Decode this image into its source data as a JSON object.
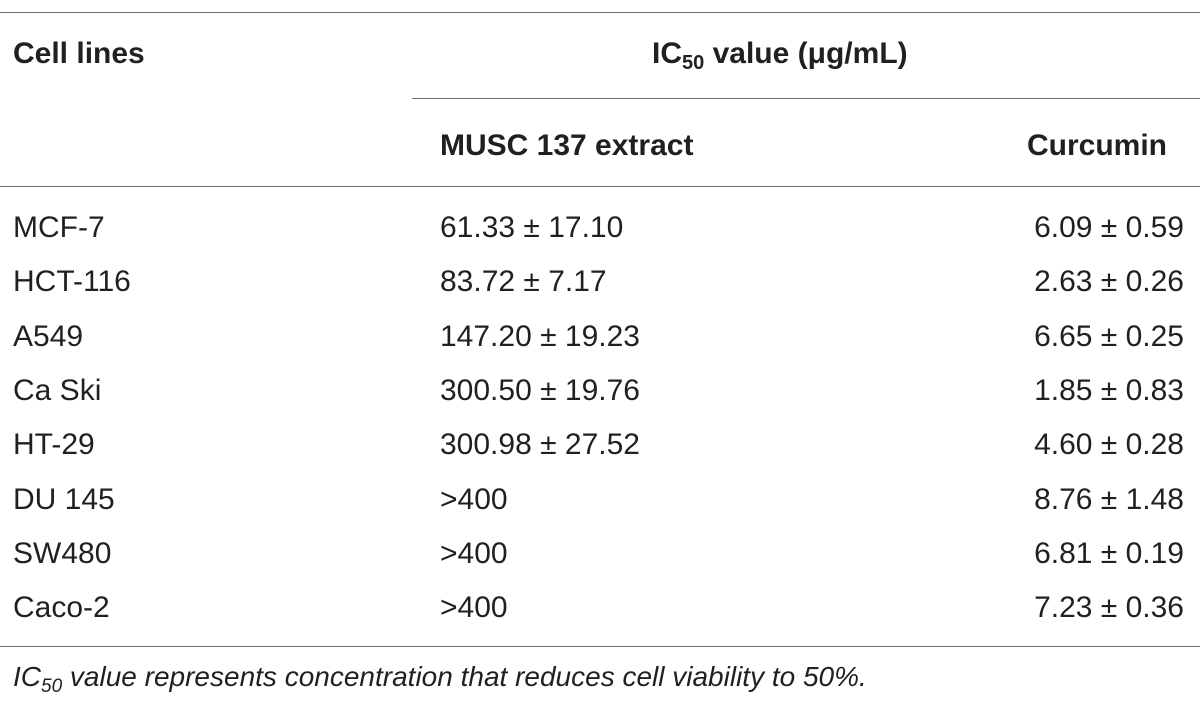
{
  "header": {
    "cell_lines": "Cell lines",
    "ic50_prefix": "IC",
    "ic50_sub": "50",
    "ic50_suffix": " value (μg/mL)",
    "musc_extract": "MUSC 137 extract",
    "curcumin": "Curcumin"
  },
  "rows": [
    {
      "cell_line": "MCF-7",
      "musc": "61.33 ± 17.10",
      "curcumin": "6.09 ± 0.59"
    },
    {
      "cell_line": "HCT-116",
      "musc": "83.72 ± 7.17",
      "curcumin": "2.63 ± 0.26"
    },
    {
      "cell_line": "A549",
      "musc": "147.20 ± 19.23",
      "curcumin": "6.65 ± 0.25"
    },
    {
      "cell_line": "Ca Ski",
      "musc": "300.50 ± 19.76",
      "curcumin": "1.85 ± 0.83"
    },
    {
      "cell_line": "HT-29",
      "musc": "300.98 ± 27.52",
      "curcumin": "4.60 ± 0.28"
    },
    {
      "cell_line": "DU 145",
      "musc": ">400",
      "curcumin": "8.76 ± 1.48"
    },
    {
      "cell_line": "SW480",
      "musc": ">400",
      "curcumin": "6.81 ± 0.19"
    },
    {
      "cell_line": "Caco-2",
      "musc": ">400",
      "curcumin": "7.23 ± 0.36"
    }
  ],
  "footnote": {
    "prefix": "IC",
    "sub": "50",
    "text": " value represents concentration that reduces cell viability to 50%."
  }
}
